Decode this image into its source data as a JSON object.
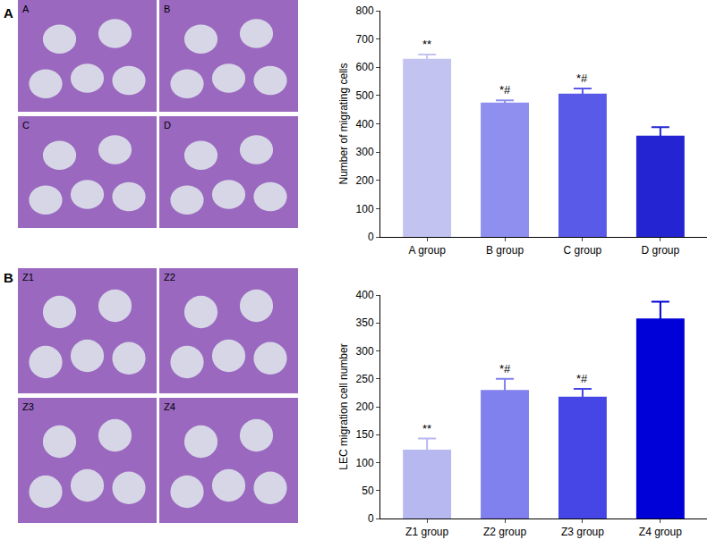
{
  "panels": [
    {
      "label": "A",
      "images": [
        "A",
        "B",
        "C",
        "D"
      ]
    },
    {
      "label": "B",
      "images": [
        "Z1",
        "Z2",
        "Z3",
        "Z4"
      ]
    }
  ],
  "chart_data": [
    {
      "type": "bar",
      "categories": [
        "A group",
        "B group",
        "C group",
        "D group"
      ],
      "values": [
        630,
        475,
        507,
        358
      ],
      "errors": [
        15,
        8,
        18,
        30
      ],
      "colors": [
        "#c3c3f2",
        "#8f8fef",
        "#5a5ae8",
        "#2424d2"
      ],
      "annotations": [
        "**",
        "*#",
        "*#",
        null
      ],
      "ylabel": "Number of migrating cells",
      "ylim": [
        0,
        800
      ],
      "yticks": [
        0,
        100,
        200,
        300,
        400,
        500,
        600,
        700,
        800
      ],
      "grid": false
    },
    {
      "type": "bar",
      "categories": [
        "Z1 group",
        "Z2 group",
        "Z3 group",
        "Z4 group"
      ],
      "values": [
        123,
        230,
        218,
        358
      ],
      "errors": [
        20,
        20,
        14,
        30
      ],
      "colors": [
        "#b8b8f0",
        "#8080ef",
        "#4646e6",
        "#0000d8"
      ],
      "annotations": [
        "**",
        "*#",
        "*#",
        null
      ],
      "ylabel": "LEC migration cell number",
      "ylim": [
        0,
        400
      ],
      "yticks": [
        0,
        50,
        100,
        150,
        200,
        250,
        300,
        350,
        400
      ],
      "grid": false
    }
  ]
}
